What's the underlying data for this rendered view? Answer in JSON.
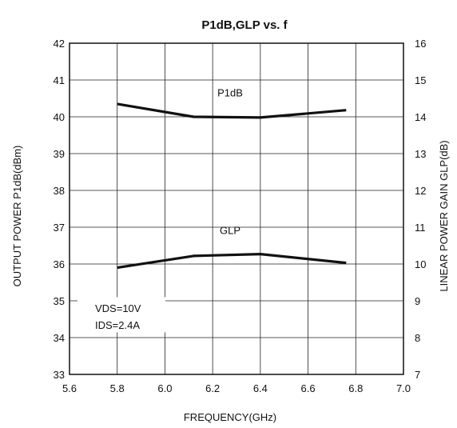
{
  "chart_data": {
    "type": "line",
    "title": "P1dB,GLP vs. f",
    "xlabel": "FREQUENCY(GHz)",
    "ylabel_left": "OUTPUT POWER P1dB(dBm)",
    "ylabel_right": "LINEAR POWER GAIN GLP(dB)",
    "xlim": [
      5.6,
      7.0
    ],
    "ylim_left": [
      33,
      42
    ],
    "ylim_right": [
      7,
      16
    ],
    "x_ticks": [
      "5.6",
      "5.8",
      "6.0",
      "6.2",
      "6.4",
      "6.6",
      "6.8",
      "7.0"
    ],
    "y_ticks_left": [
      "33",
      "34",
      "35",
      "36",
      "37",
      "38",
      "39",
      "40",
      "41",
      "42"
    ],
    "y_ticks_right": [
      "7",
      "8",
      "9",
      "10",
      "11",
      "12",
      "13",
      "14",
      "15",
      "16"
    ],
    "grid": true,
    "series": [
      {
        "name": "P1dB",
        "axis": "left",
        "x": [
          5.8,
          6.12,
          6.4,
          6.76
        ],
        "y": [
          40.35,
          40.0,
          39.98,
          40.18
        ]
      },
      {
        "name": "GLP",
        "axis": "right",
        "x": [
          5.8,
          6.12,
          6.4,
          6.76
        ],
        "y": [
          9.9,
          10.22,
          10.27,
          10.03
        ]
      }
    ],
    "annotations": [
      "VDS=10V",
      "IDS=2.4A"
    ]
  }
}
